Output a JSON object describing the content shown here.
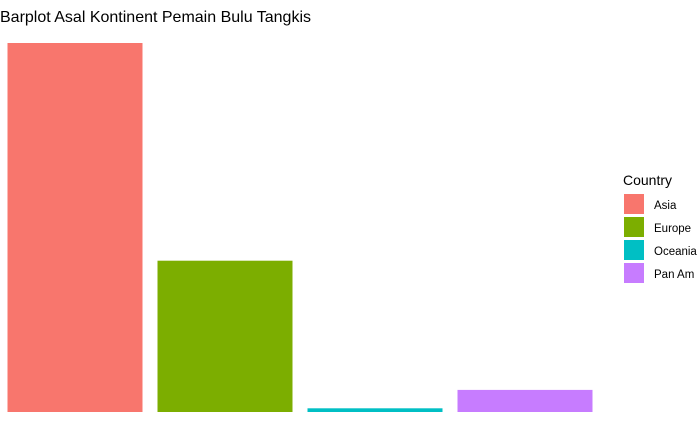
{
  "chart_data": {
    "type": "bar",
    "title": "Barplot Asal Kontinent Pemain Bulu Tangkis",
    "xlabel": "",
    "ylabel": "",
    "categories": [
      "Asia",
      "Europe",
      "Oceania",
      "Pan Am"
    ],
    "values": [
      100,
      41,
      1,
      6
    ],
    "colors": [
      "#F8766D",
      "#7CAE00",
      "#00BFC4",
      "#C77CFF"
    ],
    "ylim": [
      0,
      100
    ],
    "grid": false,
    "legend": {
      "title": "Country",
      "position": "right",
      "items": [
        "Asia",
        "Europe",
        "Oceania",
        "Pan Am"
      ]
    }
  }
}
